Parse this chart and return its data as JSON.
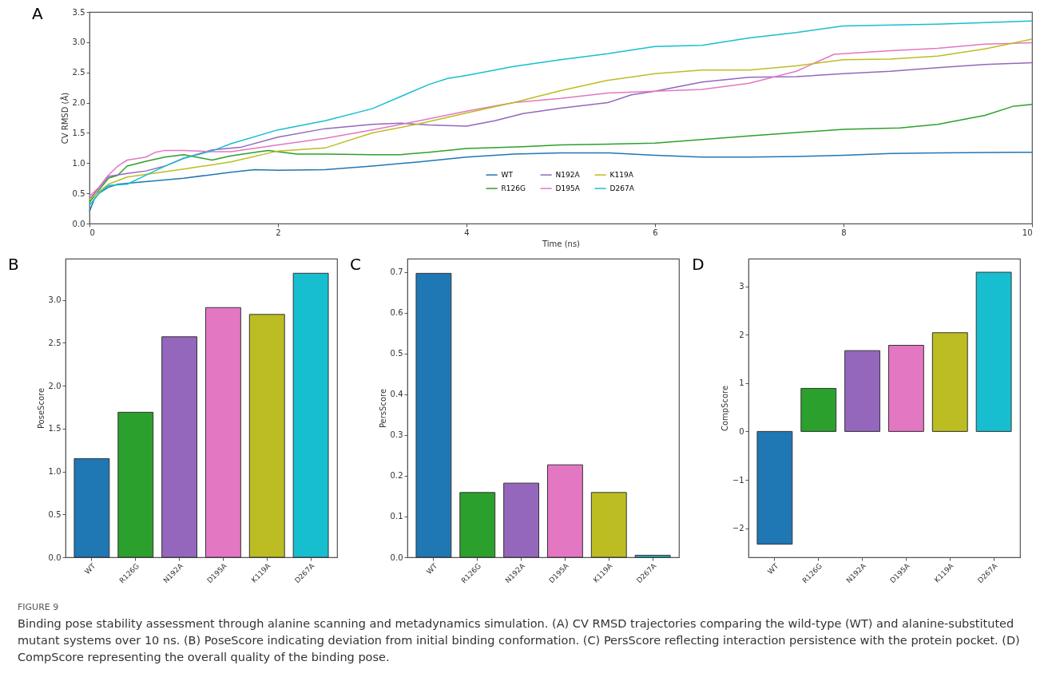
{
  "chart_data": [
    {
      "type": "line",
      "title": "A",
      "xlabel": "Time (ns)",
      "ylabel": "CV RMSD (Å)",
      "xlim": [
        0,
        10
      ],
      "ylim": [
        0,
        3.5
      ],
      "xticks": [
        0,
        2,
        4,
        6,
        8,
        10
      ],
      "yticks": [
        {
          "value": 0,
          "label": "0.0"
        },
        0.5,
        {
          "value": 1,
          "label": "1.0"
        },
        1.5,
        {
          "value": 2,
          "label": "2.0"
        },
        2.5,
        {
          "value": 3,
          "label": "3.0"
        },
        3.5
      ],
      "legend": "bottom",
      "annotations": [
        "FIGURE 9",
        "Binding pose stability assessment through alanine scanning and metadynamics simulation. (A) CV RMSD trajectories comparing the wild-type (WT) and alanine-substituted mutant systems over 10 ns. (B) PoseScore indicating deviation from initial binding conformation. (C) PersScore reflecting interaction persistence with the protein pocket. (D) CompScore representing the overall quality of the binding pose."
      ],
      "series": [
        {
          "name": "WT",
          "color": "#1f77b4",
          "x": [
            0,
            0.05,
            0.1,
            0.2,
            0.3,
            0.5,
            1,
            1.5,
            1.75,
            2,
            2.5,
            3,
            3.5,
            4,
            4.5,
            5,
            5.5,
            6,
            6.5,
            7,
            7.5,
            8,
            8.5,
            9,
            10
          ],
          "values": [
            0.2,
            0.4,
            0.5,
            0.6,
            0.65,
            0.68,
            0.75,
            0.85,
            0.89,
            0.88,
            0.89,
            0.95,
            1.02,
            1.1,
            1.15,
            1.17,
            1.17,
            1.13,
            1.1,
            1.1,
            1.11,
            1.13,
            1.16,
            1.17,
            1.18
          ]
        },
        {
          "name": "R126G",
          "color": "#2ca02c",
          "x": [
            0,
            0.1,
            0.2,
            0.3,
            0.4,
            0.6,
            0.8,
            1,
            1.2,
            1.3,
            1.5,
            1.8,
            1.9,
            2,
            2.2,
            2.5,
            3,
            3.3,
            3.6,
            4,
            4.6,
            5,
            6,
            7,
            8,
            8.6,
            9,
            9.5,
            9.8,
            10
          ],
          "values": [
            0.35,
            0.55,
            0.75,
            0.8,
            0.95,
            1.03,
            1.1,
            1.14,
            1.08,
            1.05,
            1.12,
            1.19,
            1.21,
            1.19,
            1.15,
            1.15,
            1.14,
            1.14,
            1.18,
            1.24,
            1.27,
            1.3,
            1.33,
            1.45,
            1.56,
            1.58,
            1.64,
            1.79,
            1.94,
            1.97
          ]
        },
        {
          "name": "N192A",
          "color": "#9467bd",
          "x": [
            0,
            0.2,
            0.4,
            0.6,
            0.8,
            1,
            1.3,
            1.6,
            2,
            2.5,
            3,
            3.3,
            3.6,
            4,
            4.3,
            4.6,
            5,
            5.5,
            5.75,
            6,
            6.5,
            7,
            7.5,
            8,
            8.5,
            9,
            9.5,
            10
          ],
          "values": [
            0.4,
            0.78,
            0.83,
            0.87,
            0.95,
            1.08,
            1.22,
            1.26,
            1.43,
            1.57,
            1.64,
            1.66,
            1.63,
            1.61,
            1.7,
            1.82,
            1.91,
            2.0,
            2.13,
            2.19,
            2.34,
            2.42,
            2.43,
            2.48,
            2.52,
            2.58,
            2.63,
            2.66
          ]
        },
        {
          "name": "D195A",
          "color": "#e377c2",
          "x": [
            0,
            0.1,
            0.2,
            0.3,
            0.4,
            0.6,
            0.7,
            0.8,
            1,
            1.3,
            1.5,
            2,
            2.5,
            3,
            3.5,
            4,
            4.5,
            5,
            5.5,
            6,
            6.5,
            7,
            7.5,
            7.9,
            8,
            8.5,
            9,
            9.5,
            10
          ],
          "values": [
            0.45,
            0.6,
            0.8,
            0.95,
            1.05,
            1.1,
            1.18,
            1.21,
            1.21,
            1.19,
            1.19,
            1.3,
            1.41,
            1.55,
            1.7,
            1.86,
            2.0,
            2.07,
            2.16,
            2.19,
            2.22,
            2.32,
            2.52,
            2.8,
            2.81,
            2.86,
            2.9,
            2.97,
            2.99
          ]
        },
        {
          "name": "K119A",
          "color": "#bcbd22",
          "x": [
            0,
            0.2,
            0.4,
            1,
            1.5,
            2,
            2.5,
            3,
            3.5,
            4,
            4.5,
            5,
            5.5,
            6,
            6.5,
            7,
            7.5,
            8,
            8.5,
            9,
            9.5,
            10
          ],
          "values": [
            0.4,
            0.65,
            0.77,
            0.9,
            1.02,
            1.2,
            1.25,
            1.5,
            1.65,
            1.83,
            2.0,
            2.2,
            2.37,
            2.48,
            2.54,
            2.54,
            2.61,
            2.71,
            2.72,
            2.77,
            2.89,
            3.05
          ]
        },
        {
          "name": "D267A",
          "color": "#17becf",
          "x": [
            0,
            0.1,
            0.2,
            0.4,
            0.6,
            0.8,
            1,
            1.3,
            1.5,
            2,
            2.5,
            3,
            3.3,
            3.6,
            3.8,
            4,
            4.5,
            5,
            5.5,
            6,
            6.5,
            7,
            7.5,
            8,
            9,
            10
          ],
          "values": [
            0.3,
            0.5,
            0.63,
            0.65,
            0.8,
            0.95,
            1.08,
            1.2,
            1.32,
            1.55,
            1.7,
            1.9,
            2.1,
            2.3,
            2.4,
            2.45,
            2.6,
            2.71,
            2.81,
            2.93,
            2.95,
            3.07,
            3.16,
            3.27,
            3.3,
            3.35
          ]
        }
      ]
    },
    {
      "type": "bar",
      "title": "B",
      "ylabel": "PoseScore",
      "categories": [
        "WT",
        "R126G",
        "N192A",
        "D195A",
        "K119A",
        "D267A"
      ],
      "values": [
        1.15,
        1.69,
        2.57,
        2.91,
        2.83,
        3.31
      ],
      "colors": [
        "#1f77b4",
        "#2ca02c",
        "#9467bd",
        "#e377c2",
        "#bcbd22",
        "#17becf"
      ],
      "ylim": [
        0,
        3.48
      ],
      "yticks": [
        {
          "value": 0,
          "label": "0.0"
        },
        0.5,
        {
          "value": 1,
          "label": "1.0"
        },
        1.5,
        {
          "value": 2,
          "label": "2.0"
        },
        2.5,
        {
          "value": 3,
          "label": "3.0"
        }
      ]
    },
    {
      "type": "bar",
      "title": "C",
      "ylabel": "PersScore",
      "categories": [
        "WT",
        "R126G",
        "N192A",
        "D195A",
        "K119A",
        "D267A"
      ],
      "values": [
        0.697,
        0.159,
        0.182,
        0.227,
        0.159,
        0.005
      ],
      "colors": [
        "#1f77b4",
        "#2ca02c",
        "#9467bd",
        "#e377c2",
        "#bcbd22",
        "#17becf"
      ],
      "ylim": [
        0,
        0.733
      ],
      "yticks": [
        {
          "value": 0,
          "label": "0.0"
        },
        0.1,
        0.2,
        0.3,
        0.4,
        0.5,
        0.6,
        0.7
      ]
    },
    {
      "type": "bar",
      "title": "D",
      "ylabel": "CompScore",
      "categories": [
        "WT",
        "R126G",
        "N192A",
        "D195A",
        "K119A",
        "D267A"
      ],
      "values": [
        -2.33,
        0.89,
        1.67,
        1.78,
        2.04,
        3.29
      ],
      "colors": [
        "#1f77b4",
        "#2ca02c",
        "#9467bd",
        "#e377c2",
        "#bcbd22",
        "#17becf"
      ],
      "ylim": [
        -2.6,
        3.57
      ],
      "yticks": [
        {
          "value": -2,
          "label": "−2"
        },
        {
          "value": -1,
          "label": "−1"
        },
        0,
        1,
        2,
        3
      ]
    }
  ]
}
